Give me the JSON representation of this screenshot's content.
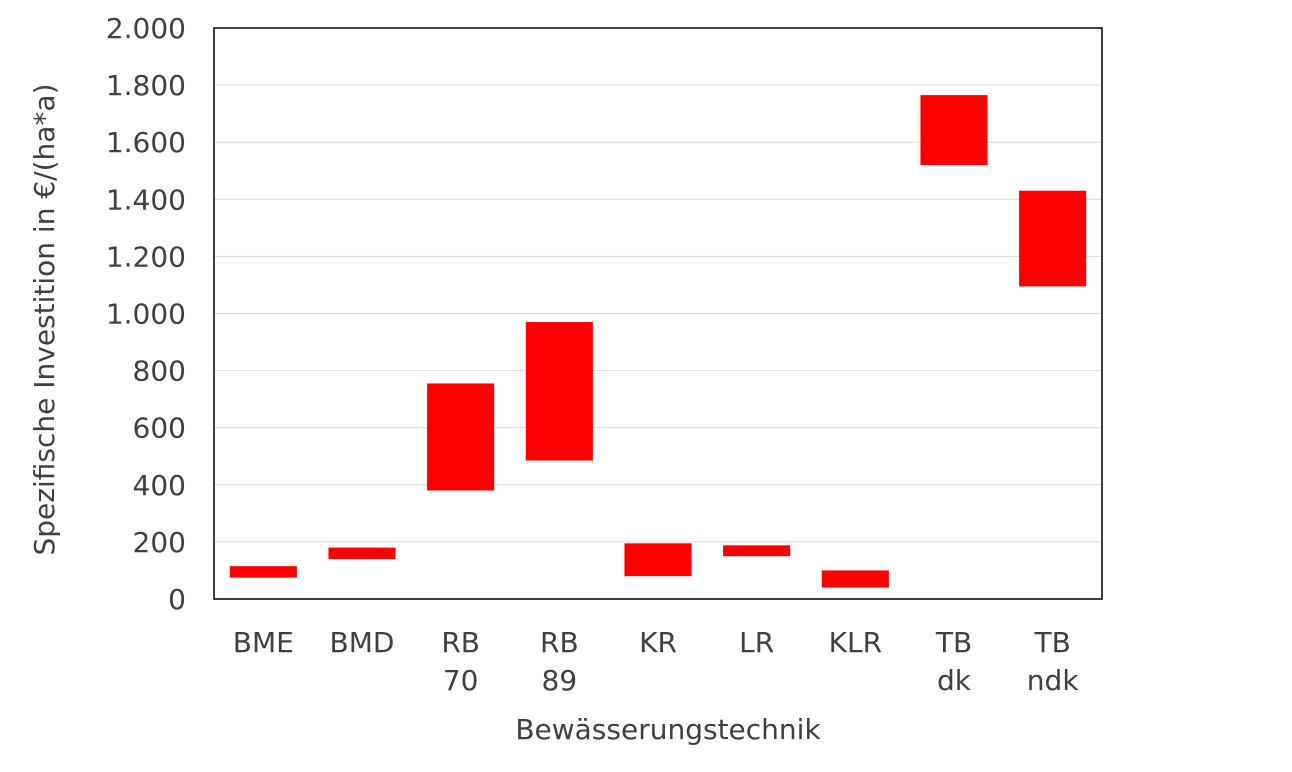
{
  "chart_data": {
    "type": "bar",
    "subtype": "floating-range",
    "title": "",
    "xlabel": "Bewässerungstechnik",
    "ylabel": "Spezifische Investition in €/(ha*a)",
    "ylim": [
      0,
      2000
    ],
    "yticks": [
      0,
      200,
      400,
      600,
      800,
      1000,
      1200,
      1400,
      1600,
      1800,
      2000
    ],
    "ytick_labels": [
      "0",
      "200",
      "400",
      "600",
      "800",
      "1.000",
      "1.200",
      "1.400",
      "1.600",
      "1.800",
      "2.000"
    ],
    "grid": true,
    "legend": "none",
    "bar_color": "#ff0000",
    "categories": [
      {
        "lines": [
          "BME"
        ],
        "low": 75,
        "high": 115
      },
      {
        "lines": [
          "BMD"
        ],
        "low": 140,
        "high": 180
      },
      {
        "lines": [
          "RB",
          "70"
        ],
        "low": 380,
        "high": 755
      },
      {
        "lines": [
          "RB",
          "89"
        ],
        "low": 485,
        "high": 970
      },
      {
        "lines": [
          "KR"
        ],
        "low": 80,
        "high": 195
      },
      {
        "lines": [
          "LR"
        ],
        "low": 150,
        "high": 188
      },
      {
        "lines": [
          "KLR"
        ],
        "low": 40,
        "high": 100
      },
      {
        "lines": [
          "TB",
          "dk"
        ],
        "low": 1520,
        "high": 1765
      },
      {
        "lines": [
          "TB",
          "ndk"
        ],
        "low": 1095,
        "high": 1430
      }
    ]
  }
}
